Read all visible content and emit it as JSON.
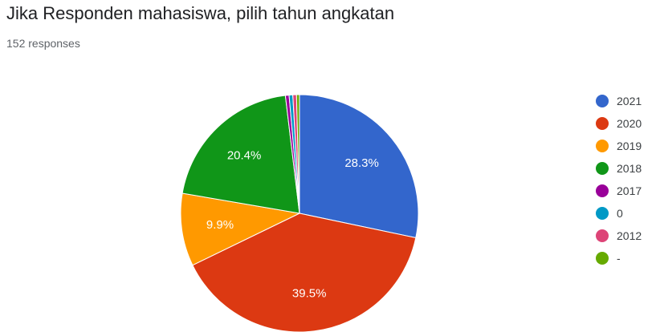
{
  "header": {
    "title": "Jika Responden mahasiswa, pilih tahun angkatan",
    "subtitle": "152 responses"
  },
  "chart_data": {
    "type": "pie",
    "title": "Jika Responden mahasiswa, pilih tahun angkatan",
    "subtitle": "152 responses",
    "legend_position": "right",
    "start_angle_deg": 90,
    "direction": "clockwise",
    "slices": [
      {
        "label": "2021",
        "value": 28.3,
        "color": "#3366cc",
        "data_label": "28.3%"
      },
      {
        "label": "2020",
        "value": 39.5,
        "color": "#dc3912",
        "data_label": "39.5%"
      },
      {
        "label": "2019",
        "value": 9.9,
        "color": "#ff9900",
        "data_label": "9.9%"
      },
      {
        "label": "2018",
        "value": 20.4,
        "color": "#109618",
        "data_label": "20.4%"
      },
      {
        "label": "2017",
        "value": 0.5,
        "color": "#990099",
        "data_label": ""
      },
      {
        "label": "0",
        "value": 0.5,
        "color": "#0099c6",
        "data_label": ""
      },
      {
        "label": "2012",
        "value": 0.5,
        "color": "#dd4477",
        "data_label": ""
      },
      {
        "label": "-",
        "value": 0.4,
        "color": "#66aa00",
        "data_label": ""
      }
    ]
  }
}
